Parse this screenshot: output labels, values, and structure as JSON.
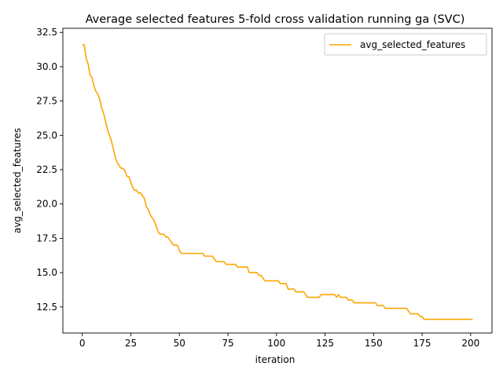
{
  "chart_data": {
    "type": "line",
    "title": "Average selected features 5-fold cross validation running ga (SVC)",
    "xlabel": "iteration",
    "ylabel": "avg_selected_features",
    "xlim": [
      -10,
      211
    ],
    "ylim": [
      10.6,
      32.8
    ],
    "x_ticks": [
      0,
      25,
      50,
      75,
      100,
      125,
      150,
      175,
      200
    ],
    "y_ticks": [
      12.5,
      15.0,
      17.5,
      20.0,
      22.5,
      25.0,
      27.5,
      30.0,
      32.5
    ],
    "y_tick_labels": [
      "12.5",
      "15.0",
      "17.5",
      "20.0",
      "22.5",
      "25.0",
      "27.5",
      "30.0",
      "32.5"
    ],
    "grid": false,
    "legend": {
      "position": "top-right",
      "entries": [
        "avg_selected_features"
      ]
    },
    "series": [
      {
        "name": "avg_selected_features",
        "color": "#ffa500",
        "points": [
          [
            0,
            31.6
          ],
          [
            1,
            31.6
          ],
          [
            2,
            30.6
          ],
          [
            3,
            30.2
          ],
          [
            4,
            29.4
          ],
          [
            5,
            29.2
          ],
          [
            6,
            28.6
          ],
          [
            7,
            28.2
          ],
          [
            8,
            28.0
          ],
          [
            9,
            27.6
          ],
          [
            10,
            27.0
          ],
          [
            11,
            26.6
          ],
          [
            12,
            26.0
          ],
          [
            13,
            25.4
          ],
          [
            14,
            25.0
          ],
          [
            15,
            24.6
          ],
          [
            16,
            24.0
          ],
          [
            17,
            23.4
          ],
          [
            18,
            23.0
          ],
          [
            19,
            22.8
          ],
          [
            20,
            22.6
          ],
          [
            21,
            22.6
          ],
          [
            22,
            22.4
          ],
          [
            23,
            22.0
          ],
          [
            24,
            22.0
          ],
          [
            25,
            21.6
          ],
          [
            26,
            21.2
          ],
          [
            27,
            21.0
          ],
          [
            28,
            21.0
          ],
          [
            29,
            20.8
          ],
          [
            30,
            20.8
          ],
          [
            31,
            20.6
          ],
          [
            32,
            20.4
          ],
          [
            33,
            19.8
          ],
          [
            34,
            19.6
          ],
          [
            35,
            19.2
          ],
          [
            36,
            19.0
          ],
          [
            37,
            18.8
          ],
          [
            38,
            18.4
          ],
          [
            39,
            18.0
          ],
          [
            40,
            17.8
          ],
          [
            41,
            17.8
          ],
          [
            42,
            17.8
          ],
          [
            43,
            17.6
          ],
          [
            44,
            17.6
          ],
          [
            45,
            17.4
          ],
          [
            46,
            17.2
          ],
          [
            47,
            17.0
          ],
          [
            48,
            17.0
          ],
          [
            49,
            17.0
          ],
          [
            50,
            16.6
          ],
          [
            51,
            16.4
          ],
          [
            52,
            16.4
          ],
          [
            53,
            16.4
          ],
          [
            54,
            16.4
          ],
          [
            55,
            16.4
          ],
          [
            56,
            16.4
          ],
          [
            57,
            16.4
          ],
          [
            58,
            16.4
          ],
          [
            59,
            16.4
          ],
          [
            60,
            16.4
          ],
          [
            61,
            16.4
          ],
          [
            62,
            16.4
          ],
          [
            63,
            16.2
          ],
          [
            64,
            16.2
          ],
          [
            65,
            16.2
          ],
          [
            66,
            16.2
          ],
          [
            67,
            16.2
          ],
          [
            68,
            16.0
          ],
          [
            69,
            15.8
          ],
          [
            70,
            15.8
          ],
          [
            71,
            15.8
          ],
          [
            72,
            15.8
          ],
          [
            73,
            15.8
          ],
          [
            74,
            15.6
          ],
          [
            75,
            15.6
          ],
          [
            76,
            15.6
          ],
          [
            77,
            15.6
          ],
          [
            78,
            15.6
          ],
          [
            79,
            15.6
          ],
          [
            80,
            15.4
          ],
          [
            81,
            15.4
          ],
          [
            82,
            15.4
          ],
          [
            83,
            15.4
          ],
          [
            84,
            15.4
          ],
          [
            85,
            15.4
          ],
          [
            86,
            15.0
          ],
          [
            87,
            15.0
          ],
          [
            88,
            15.0
          ],
          [
            89,
            15.0
          ],
          [
            90,
            15.0
          ],
          [
            91,
            14.8
          ],
          [
            92,
            14.8
          ],
          [
            93,
            14.6
          ],
          [
            94,
            14.4
          ],
          [
            95,
            14.4
          ],
          [
            96,
            14.4
          ],
          [
            97,
            14.4
          ],
          [
            98,
            14.4
          ],
          [
            99,
            14.4
          ],
          [
            100,
            14.4
          ],
          [
            101,
            14.4
          ],
          [
            102,
            14.2
          ],
          [
            103,
            14.2
          ],
          [
            104,
            14.2
          ],
          [
            105,
            14.2
          ],
          [
            106,
            13.8
          ],
          [
            107,
            13.8
          ],
          [
            108,
            13.8
          ],
          [
            109,
            13.8
          ],
          [
            110,
            13.6
          ],
          [
            111,
            13.6
          ],
          [
            112,
            13.6
          ],
          [
            113,
            13.6
          ],
          [
            114,
            13.6
          ],
          [
            115,
            13.4
          ],
          [
            116,
            13.2
          ],
          [
            117,
            13.2
          ],
          [
            118,
            13.2
          ],
          [
            119,
            13.2
          ],
          [
            120,
            13.2
          ],
          [
            121,
            13.2
          ],
          [
            122,
            13.2
          ],
          [
            123,
            13.4
          ],
          [
            124,
            13.4
          ],
          [
            125,
            13.4
          ],
          [
            126,
            13.4
          ],
          [
            127,
            13.4
          ],
          [
            128,
            13.4
          ],
          [
            129,
            13.4
          ],
          [
            130,
            13.4
          ],
          [
            131,
            13.2
          ],
          [
            132,
            13.4
          ],
          [
            133,
            13.2
          ],
          [
            134,
            13.2
          ],
          [
            135,
            13.2
          ],
          [
            136,
            13.2
          ],
          [
            137,
            13.0
          ],
          [
            138,
            13.0
          ],
          [
            139,
            13.0
          ],
          [
            140,
            12.8
          ],
          [
            141,
            12.8
          ],
          [
            142,
            12.8
          ],
          [
            143,
            12.8
          ],
          [
            144,
            12.8
          ],
          [
            145,
            12.8
          ],
          [
            146,
            12.8
          ],
          [
            147,
            12.8
          ],
          [
            148,
            12.8
          ],
          [
            149,
            12.8
          ],
          [
            150,
            12.8
          ],
          [
            151,
            12.8
          ],
          [
            152,
            12.6
          ],
          [
            153,
            12.6
          ],
          [
            154,
            12.6
          ],
          [
            155,
            12.6
          ],
          [
            156,
            12.4
          ],
          [
            157,
            12.4
          ],
          [
            158,
            12.4
          ],
          [
            159,
            12.4
          ],
          [
            160,
            12.4
          ],
          [
            161,
            12.4
          ],
          [
            162,
            12.4
          ],
          [
            163,
            12.4
          ],
          [
            164,
            12.4
          ],
          [
            165,
            12.4
          ],
          [
            166,
            12.4
          ],
          [
            167,
            12.4
          ],
          [
            168,
            12.2
          ],
          [
            169,
            12.0
          ],
          [
            170,
            12.0
          ],
          [
            171,
            12.0
          ],
          [
            172,
            12.0
          ],
          [
            173,
            12.0
          ],
          [
            174,
            11.8
          ],
          [
            175,
            11.8
          ],
          [
            176,
            11.6
          ],
          [
            177,
            11.6
          ],
          [
            178,
            11.6
          ],
          [
            179,
            11.6
          ],
          [
            180,
            11.6
          ],
          [
            181,
            11.6
          ],
          [
            182,
            11.6
          ],
          [
            183,
            11.6
          ],
          [
            184,
            11.6
          ],
          [
            185,
            11.6
          ],
          [
            186,
            11.6
          ],
          [
            187,
            11.6
          ],
          [
            188,
            11.6
          ],
          [
            189,
            11.6
          ],
          [
            190,
            11.6
          ],
          [
            191,
            11.6
          ],
          [
            192,
            11.6
          ],
          [
            193,
            11.6
          ],
          [
            194,
            11.6
          ],
          [
            195,
            11.6
          ],
          [
            196,
            11.6
          ],
          [
            197,
            11.6
          ],
          [
            198,
            11.6
          ],
          [
            199,
            11.6
          ],
          [
            200,
            11.6
          ],
          [
            201,
            11.6
          ]
        ]
      }
    ]
  }
}
